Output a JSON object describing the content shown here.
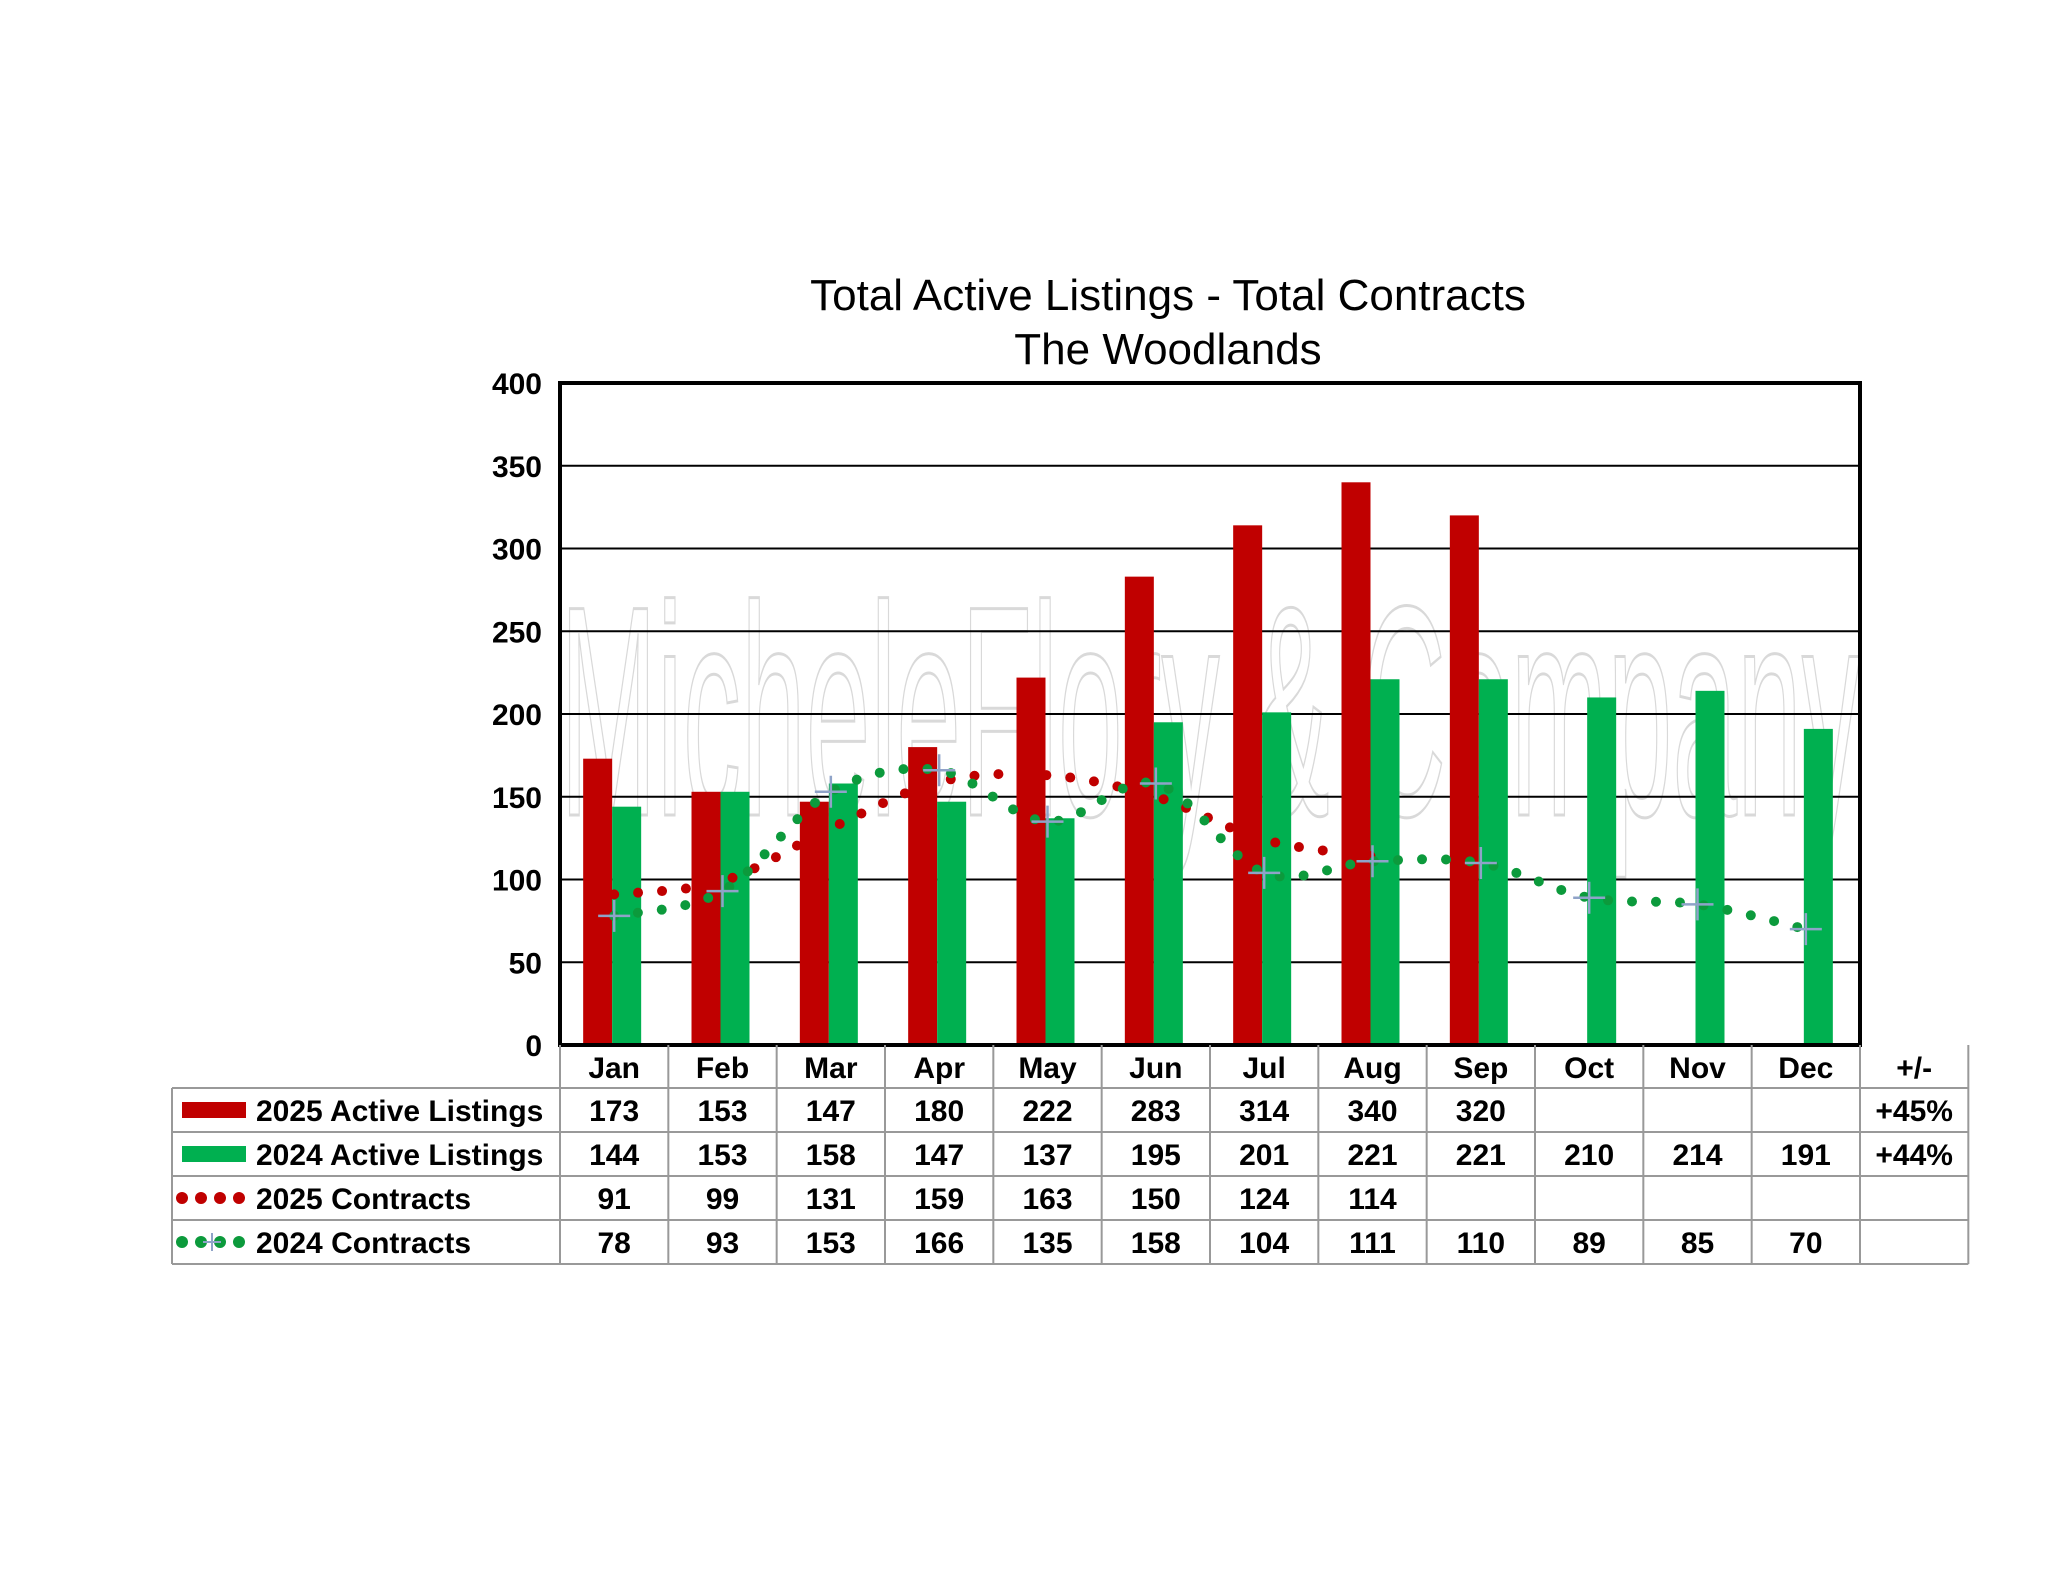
{
  "colors": {
    "active_2025": "#c00000",
    "active_2024": "#00b050",
    "contracts_2025": "#c00000",
    "contracts_2024": "#0c9a3c",
    "contract_marker": "#8fa3c8"
  },
  "chart_data": {
    "type": "bar",
    "title": "Total Active Listings - Total Contracts",
    "subtitle": "The Woodlands",
    "categories": [
      "Jan",
      "Feb",
      "Mar",
      "Apr",
      "May",
      "Jun",
      "Jul",
      "Aug",
      "Sep",
      "Oct",
      "Nov",
      "Dec"
    ],
    "ylim": [
      0,
      400
    ],
    "yticks": [
      0,
      50,
      100,
      150,
      200,
      250,
      300,
      350,
      400
    ],
    "grid": true,
    "watermark": "MicheleFlory & Company",
    "series": [
      {
        "name": "2025 Active Listings",
        "type": "bar",
        "color": "#c00000",
        "values": [
          173,
          153,
          147,
          180,
          222,
          283,
          314,
          340,
          320,
          null,
          null,
          null
        ]
      },
      {
        "name": "2024 Active Listings",
        "type": "bar",
        "color": "#00b050",
        "values": [
          144,
          153,
          158,
          147,
          137,
          195,
          201,
          221,
          221,
          210,
          214,
          191
        ]
      },
      {
        "name": "2025 Contracts",
        "type": "line",
        "style": "dotted",
        "color": "#c00000",
        "values": [
          91,
          99,
          131,
          159,
          163,
          150,
          124,
          114,
          null,
          null,
          null,
          null
        ]
      },
      {
        "name": "2024 Contracts",
        "type": "line",
        "style": "dotted",
        "color": "#0c9a3c",
        "marker": "plus",
        "values": [
          78,
          93,
          153,
          166,
          135,
          158,
          104,
          111,
          110,
          89,
          85,
          70
        ]
      }
    ],
    "table": {
      "change_header": "+/-",
      "change_values": [
        "+45%",
        "+44%",
        "",
        ""
      ]
    }
  }
}
